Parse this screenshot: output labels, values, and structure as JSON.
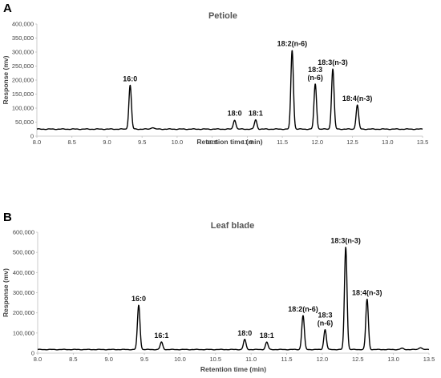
{
  "chart_data": [
    {
      "panel": "A",
      "type": "line",
      "title": "Petiole",
      "xlabel": "Retention time (min)",
      "ylabel": "Response (mv)",
      "xlim": [
        8.0,
        13.5
      ],
      "ylim": [
        0,
        400000
      ],
      "x_ticks": [
        "8.0",
        "8.5",
        "9.0",
        "9.5",
        "10.0",
        "10.5",
        "11.0",
        "11.5",
        "12.0",
        "12.5",
        "13.0",
        "13.5"
      ],
      "y_ticks": [
        "0",
        "50,000",
        "100,000",
        "150,000",
        "200,000",
        "250,000",
        "300,000",
        "350,000",
        "400,000"
      ],
      "baseline": 25000,
      "peaks": [
        {
          "label": "16:0",
          "x": 9.33,
          "y": 182000
        },
        {
          "label": "18:0",
          "x": 10.82,
          "y": 58000
        },
        {
          "label": "18:1",
          "x": 11.12,
          "y": 58000
        },
        {
          "label": "18:2(n-6)",
          "x": 11.64,
          "y": 307000
        },
        {
          "label": "18:3\n(n-6)",
          "x": 11.97,
          "y": 186000
        },
        {
          "label": "18:3(n-3)",
          "x": 12.22,
          "y": 240000
        },
        {
          "label": "18:4(n-3)",
          "x": 12.57,
          "y": 111000
        }
      ],
      "minor_peaks": [
        {
          "x": 9.65,
          "y": 31000
        }
      ]
    },
    {
      "panel": "B",
      "type": "line",
      "title": "Leaf blade",
      "xlabel": "Retention time (min)",
      "ylabel": "Response (mv)",
      "xlim": [
        8.0,
        13.5
      ],
      "ylim": [
        0,
        600000
      ],
      "x_ticks": [
        "8.0",
        "8.5",
        "9.0",
        "9.5",
        "10.0",
        "10.5",
        "11.0",
        "11.5",
        "12.0",
        "12.5",
        "13.0",
        "13.5"
      ],
      "y_ticks": [
        "0",
        "100,000",
        "200,000",
        "300,000",
        "400,000",
        "500,000",
        "600,000"
      ],
      "baseline": 18000,
      "peaks": [
        {
          "label": "16:0",
          "x": 9.42,
          "y": 238000
        },
        {
          "label": "16:1",
          "x": 9.74,
          "y": 55000
        },
        {
          "label": "18:0",
          "x": 10.91,
          "y": 68000
        },
        {
          "label": "18:1",
          "x": 11.22,
          "y": 55000
        },
        {
          "label": "18:2(n-6)",
          "x": 11.73,
          "y": 187000
        },
        {
          "label": "18:3\n(n-6)",
          "x": 12.04,
          "y": 117000
        },
        {
          "label": "18:3(n-3)",
          "x": 12.33,
          "y": 527000
        },
        {
          "label": "18:4(n-3)",
          "x": 12.63,
          "y": 268000
        }
      ],
      "minor_peaks": [
        {
          "x": 13.12,
          "y": 24000
        },
        {
          "x": 13.38,
          "y": 28000
        }
      ]
    }
  ]
}
